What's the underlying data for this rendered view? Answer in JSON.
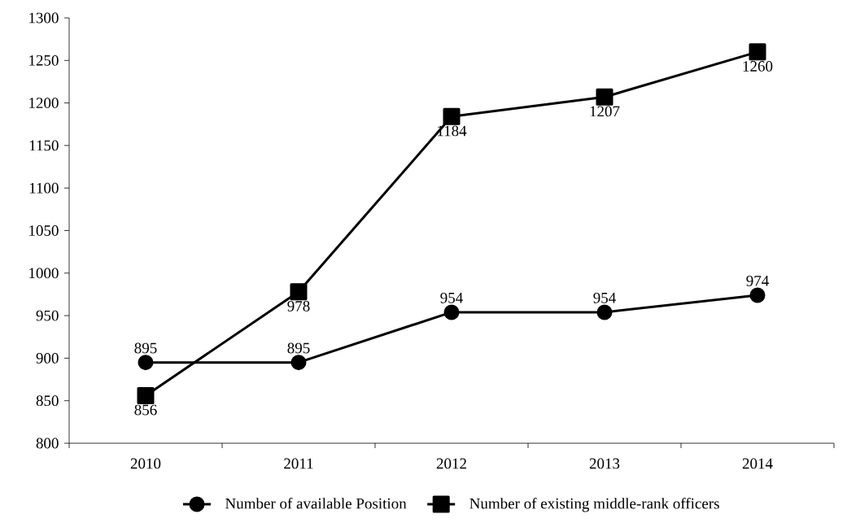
{
  "chart_data": {
    "type": "line",
    "categories": [
      "2010",
      "2011",
      "2012",
      "2013",
      "2014"
    ],
    "series": [
      {
        "name": "Number of available Position",
        "color": "#000000",
        "marker": "circle",
        "values": [
          895,
          895,
          954,
          954,
          974
        ]
      },
      {
        "name": "Number of existing middle-rank officers",
        "color": "#000000",
        "marker": "square",
        "values": [
          856,
          978,
          1184,
          1207,
          1260
        ]
      }
    ],
    "ylim": [
      800,
      1300
    ],
    "yticks": [
      800,
      850,
      900,
      950,
      1000,
      1050,
      1100,
      1150,
      1200,
      1250,
      1300
    ],
    "data_labels": true,
    "legend": "bottom",
    "grid": false,
    "line_style": "solid"
  }
}
